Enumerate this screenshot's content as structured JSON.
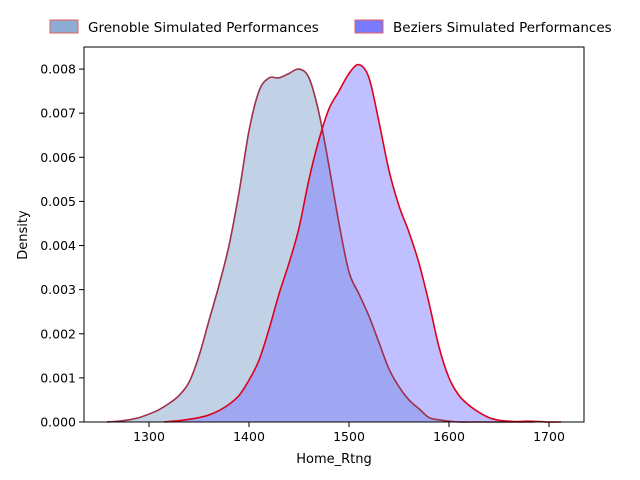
{
  "chart_data": {
    "type": "area",
    "xlabel": "Home_Rtng",
    "ylabel": "Density",
    "xlim": [
      1235,
      1735
    ],
    "ylim": [
      0,
      0.0085
    ],
    "xticks": [
      "1300",
      "1400",
      "1500",
      "1600",
      "1700"
    ],
    "yticks": [
      "0.000",
      "0.001",
      "0.002",
      "0.003",
      "0.004",
      "0.005",
      "0.006",
      "0.007",
      "0.008"
    ],
    "legend_position": "top-center-outside",
    "series": [
      {
        "name": "Grenoble Simulated Performances",
        "fill": "#8eadd4",
        "line": "#a0304a",
        "x": [
          1258,
          1270,
          1280,
          1290,
          1300,
          1310,
          1320,
          1330,
          1340,
          1350,
          1360,
          1370,
          1380,
          1390,
          1400,
          1410,
          1420,
          1430,
          1440,
          1450,
          1460,
          1470,
          1480,
          1490,
          1500,
          1510,
          1520,
          1530,
          1540,
          1550,
          1560,
          1570,
          1580,
          1590,
          1600,
          1610,
          1620,
          1630,
          1640,
          1650,
          1660,
          1670,
          1685
        ],
        "y": [
          0.0,
          2e-05,
          5e-05,
          0.0001,
          0.00018,
          0.00028,
          0.00042,
          0.0006,
          0.0009,
          0.0015,
          0.0023,
          0.0031,
          0.004,
          0.0052,
          0.0066,
          0.0075,
          0.0078,
          0.0078,
          0.0079,
          0.008,
          0.0078,
          0.007,
          0.0058,
          0.0045,
          0.0034,
          0.0029,
          0.0024,
          0.0018,
          0.0012,
          0.0008,
          0.0005,
          0.0003,
          0.0001,
          5e-05,
          2e-05,
          0.0,
          0.0,
          0.0,
          0.0,
          0.0,
          0.0,
          0.0,
          0.0
        ]
      },
      {
        "name": "Beziers Simulated Performances",
        "fill": "#7b7aff",
        "line": "#e0001a",
        "x": [
          1315,
          1320,
          1330,
          1340,
          1350,
          1360,
          1370,
          1380,
          1390,
          1400,
          1410,
          1420,
          1430,
          1440,
          1450,
          1460,
          1470,
          1480,
          1490,
          1500,
          1510,
          1520,
          1530,
          1540,
          1550,
          1560,
          1570,
          1580,
          1590,
          1600,
          1610,
          1620,
          1630,
          1640,
          1650,
          1660,
          1670,
          1680,
          1690,
          1700,
          1712
        ],
        "y": [
          0.0,
          1e-05,
          3e-05,
          6e-05,
          0.0001,
          0.00016,
          0.00026,
          0.0004,
          0.0006,
          0.00095,
          0.0014,
          0.0021,
          0.0029,
          0.0036,
          0.0044,
          0.0055,
          0.0064,
          0.0071,
          0.0075,
          0.0079,
          0.0081,
          0.0078,
          0.0068,
          0.0057,
          0.0049,
          0.0043,
          0.0036,
          0.0027,
          0.0017,
          0.001,
          0.0006,
          0.00038,
          0.00022,
          0.0001,
          4e-05,
          2e-05,
          1e-05,
          2e-05,
          1e-05,
          0.0,
          0.0
        ]
      }
    ]
  }
}
